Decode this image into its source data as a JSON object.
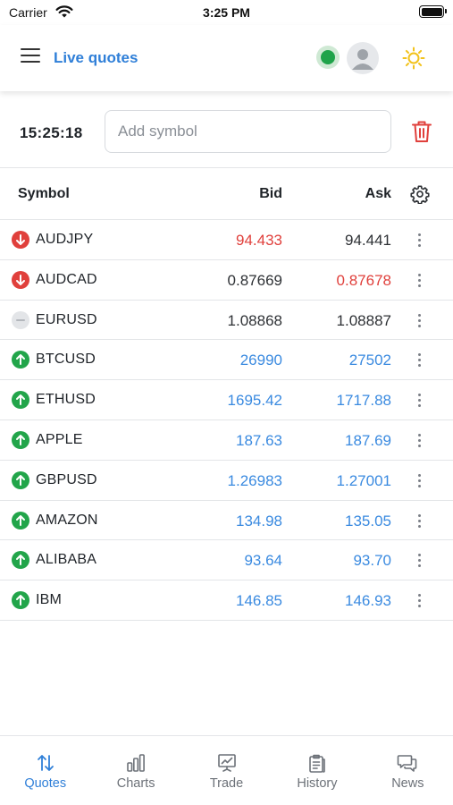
{
  "status_bar": {
    "carrier": "Carrier",
    "time": "3:25 PM"
  },
  "header": {
    "title": "Live quotes",
    "connection_color": "#1fa34a",
    "theme_icon": "sun-icon"
  },
  "toolbar": {
    "time": "15:25:18",
    "add_symbol_placeholder": "Add symbol"
  },
  "table": {
    "headers": {
      "symbol": "Symbol",
      "bid": "Bid",
      "ask": "Ask"
    },
    "rows": [
      {
        "direction": "down",
        "symbol": "AUDJPY",
        "bid": "94.433",
        "bid_color": "red",
        "ask": "94.441",
        "ask_color": "dark"
      },
      {
        "direction": "down",
        "symbol": "AUDCAD",
        "bid": "0.87669",
        "bid_color": "dark",
        "ask": "0.87678",
        "ask_color": "red"
      },
      {
        "direction": "flat",
        "symbol": "EURUSD",
        "bid": "1.08868",
        "bid_color": "dark",
        "ask": "1.08887",
        "ask_color": "dark"
      },
      {
        "direction": "up",
        "symbol": "BTCUSD",
        "bid": "26990",
        "bid_color": "blue",
        "ask": "27502",
        "ask_color": "blue"
      },
      {
        "direction": "up",
        "symbol": "ETHUSD",
        "bid": "1695.42",
        "bid_color": "blue",
        "ask": "1717.88",
        "ask_color": "blue"
      },
      {
        "direction": "up",
        "symbol": "APPLE",
        "bid": "187.63",
        "bid_color": "blue",
        "ask": "187.69",
        "ask_color": "blue"
      },
      {
        "direction": "up",
        "symbol": "GBPUSD",
        "bid": "1.26983",
        "bid_color": "blue",
        "ask": "1.27001",
        "ask_color": "blue"
      },
      {
        "direction": "up",
        "symbol": "AMAZON",
        "bid": "134.98",
        "bid_color": "blue",
        "ask": "135.05",
        "ask_color": "blue"
      },
      {
        "direction": "up",
        "symbol": "ALIBABA",
        "bid": "93.64",
        "bid_color": "blue",
        "ask": "93.70",
        "ask_color": "blue"
      },
      {
        "direction": "up",
        "symbol": "IBM",
        "bid": "146.85",
        "bid_color": "blue",
        "ask": "146.93",
        "ask_color": "blue"
      }
    ]
  },
  "bottom_nav": [
    {
      "label": "Quotes",
      "icon": "arrows-swap-icon",
      "active": true
    },
    {
      "label": "Charts",
      "icon": "bar-chart-icon",
      "active": false
    },
    {
      "label": "Trade",
      "icon": "presentation-chart-icon",
      "active": false
    },
    {
      "label": "History",
      "icon": "clipboard-history-icon",
      "active": false
    },
    {
      "label": "News",
      "icon": "chat-bubbles-icon",
      "active": false
    }
  ],
  "colors": {
    "accent": "#2f7fd8",
    "up": "#22a54a",
    "down": "#e0403c",
    "price_up": "#3a8ae0",
    "sun": "#f2c21b"
  }
}
